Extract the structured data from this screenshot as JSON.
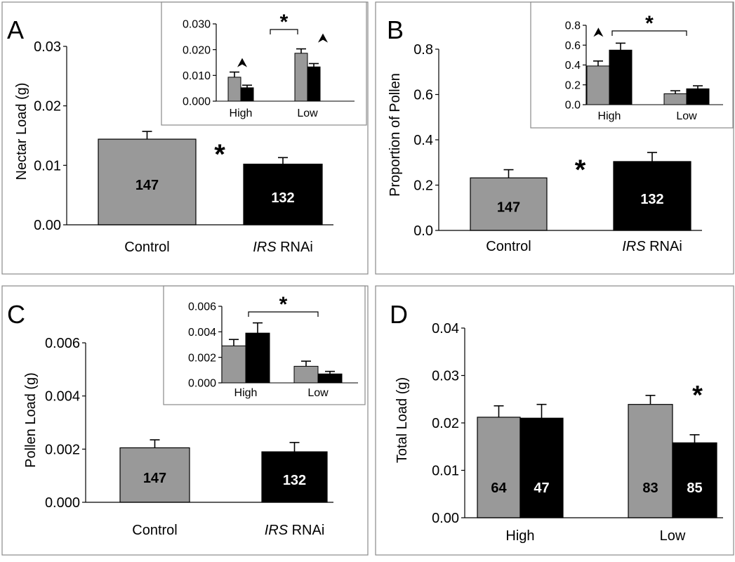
{
  "colors": {
    "control": "#999999",
    "rnai": "#000000",
    "axis": "#000000",
    "frame": "#8a8a8a"
  },
  "chart_data": [
    {
      "panel": "A",
      "type": "bar",
      "ylabel": "Nectar Load (g)",
      "yticks": [
        "0.00",
        "0.01",
        "0.02",
        "0.03"
      ],
      "ylim": [
        0,
        0.03
      ],
      "categories": [
        "Control",
        "IRS RNAi"
      ],
      "values": [
        0.0144,
        0.0102
      ],
      "errors": [
        0.0013,
        0.0011
      ],
      "n": [
        "147",
        "132"
      ],
      "significance": "*",
      "inset": {
        "yticks": [
          "0.000",
          "0.010",
          "0.020",
          "0.030"
        ],
        "ylim": [
          0,
          0.03
        ],
        "categories": [
          "High",
          "Low"
        ],
        "series": [
          {
            "values": [
              0.0093,
              0.0186
            ],
            "errors": [
              0.002,
              0.0017
            ]
          },
          {
            "values": [
              0.0052,
              0.0133
            ],
            "errors": [
              0.001,
              0.0013
            ]
          }
        ],
        "significance": "*",
        "arrowheads": [
          0,
          1
        ]
      }
    },
    {
      "panel": "B",
      "type": "bar",
      "ylabel": "Proportion of Pollen",
      "yticks": [
        "0.0",
        "0.2",
        "0.4",
        "0.6",
        "0.8"
      ],
      "ylim": [
        0,
        0.8
      ],
      "categories": [
        "Control",
        "IRS RNAi"
      ],
      "values": [
        0.232,
        0.304
      ],
      "errors": [
        0.036,
        0.04
      ],
      "n": [
        "147",
        "132"
      ],
      "significance": "*",
      "inset": {
        "yticks": [
          "0.0",
          "0.2",
          "0.4",
          "0.6",
          "0.8"
        ],
        "ylim": [
          0,
          0.8
        ],
        "categories": [
          "High",
          "Low"
        ],
        "series": [
          {
            "values": [
              0.39,
              0.11
            ],
            "errors": [
              0.05,
              0.03
            ]
          },
          {
            "values": [
              0.55,
              0.16
            ],
            "errors": [
              0.07,
              0.03
            ]
          }
        ],
        "significance": "*",
        "arrowheads": [
          0
        ]
      }
    },
    {
      "panel": "C",
      "type": "bar",
      "ylabel": "Pollen Load (g)",
      "yticks": [
        "0.000",
        "0.002",
        "0.004",
        "0.006"
      ],
      "ylim": [
        0,
        0.006
      ],
      "categories": [
        "Control",
        "IRS RNAi"
      ],
      "values": [
        0.00205,
        0.0019
      ],
      "errors": [
        0.0003,
        0.00035
      ],
      "n": [
        "147",
        "132"
      ],
      "significance": "",
      "inset": {
        "yticks": [
          "0.000",
          "0.002",
          "0.004",
          "0.006"
        ],
        "ylim": [
          0,
          0.006
        ],
        "categories": [
          "High",
          "Low"
        ],
        "series": [
          {
            "values": [
              0.0029,
              0.0013
            ],
            "errors": [
              0.0005,
              0.0004
            ]
          },
          {
            "values": [
              0.0039,
              0.0007
            ],
            "errors": [
              0.0008,
              0.0002
            ]
          }
        ],
        "significance": "*",
        "arrowheads": []
      }
    },
    {
      "panel": "D",
      "type": "bar",
      "ylabel": "Total Load (g)",
      "yticks": [
        "0.00",
        "0.01",
        "0.02",
        "0.03",
        "0.04"
      ],
      "ylim": [
        0,
        0.04
      ],
      "categories": [
        "High",
        "Low"
      ],
      "series": [
        {
          "values": [
            0.0212,
            0.0239
          ],
          "errors": [
            0.0024,
            0.0019
          ],
          "n": [
            "64",
            "83"
          ]
        },
        {
          "values": [
            0.021,
            0.0158
          ],
          "errors": [
            0.0029,
            0.0017
          ],
          "n": [
            "47",
            "85"
          ]
        }
      ],
      "significance": "*",
      "significance_group": 1
    }
  ]
}
